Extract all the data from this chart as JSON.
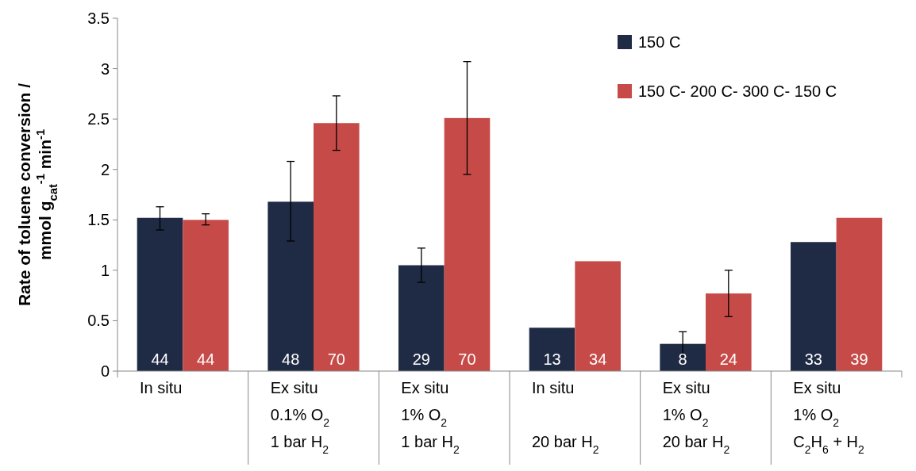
{
  "chart_data": {
    "type": "bar",
    "ylabel": "Rate of toluene conversion /\nmmol g$_{cat}$$^{-1}$ min$^{-1}$",
    "categories": [
      "In situ",
      "Ex situ\n0.1% O$_{2}$\n1 bar H$_{2}$",
      "Ex situ\n1% O$_{2}$\n1 bar H$_{2}$",
      "In situ\n\n20 bar H$_{2}$",
      "Ex situ\n1% O$_{2}$\n20 bar H$_{2}$",
      "Ex situ\n1% O$_{2}$\nC$_{2}$H$_{6}$ + H$_{2}$"
    ],
    "series": [
      {
        "name": "150 C",
        "color": "#1f2a44",
        "values": [
          1.52,
          1.68,
          1.05,
          0.43,
          0.27,
          1.28
        ],
        "errors": [
          [
            1.4,
            1.63
          ],
          [
            1.29,
            2.08
          ],
          [
            0.88,
            1.22
          ],
          null,
          [
            0.15,
            0.39
          ],
          null
        ]
      },
      {
        "name": "150 C- 200 C- 300 C- 150 C",
        "color": "#c64b48",
        "values": [
          1.5,
          2.46,
          2.51,
          1.09,
          0.77,
          1.52
        ],
        "errors": [
          [
            1.45,
            1.56
          ],
          [
            2.19,
            2.73
          ],
          [
            1.95,
            3.07
          ],
          null,
          [
            0.54,
            1.0
          ],
          null
        ]
      }
    ],
    "annotations": [
      "44",
      "44",
      "48",
      "70",
      "29",
      "70",
      "13",
      "34",
      "8",
      "24",
      "33",
      "39"
    ],
    "ylim": [
      0,
      3.5
    ],
    "yticks": [
      0,
      0.5,
      1,
      1.5,
      2,
      2.5,
      3,
      3.5
    ],
    "legend": "top right"
  }
}
